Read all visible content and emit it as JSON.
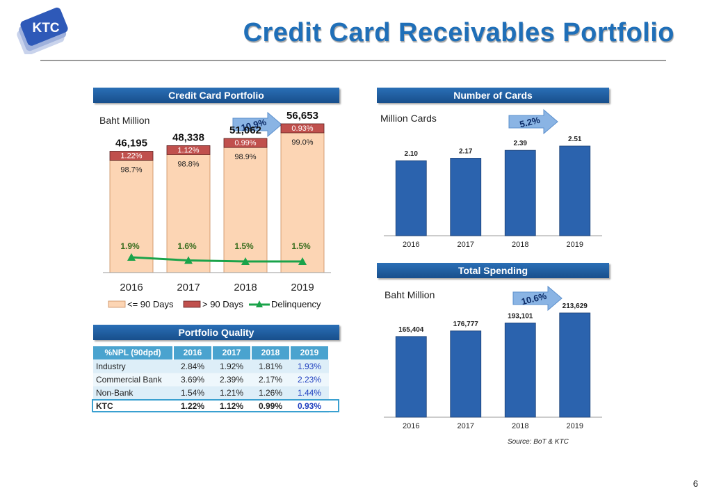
{
  "logo": {
    "text": "KTC"
  },
  "title": "Credit Card Receivables Portfolio",
  "page_number": "6",
  "source": "Source: BoT & KTC",
  "panels": {
    "portfolio": {
      "banner": "Credit Card Portfolio",
      "unit": "Baht Million",
      "growth": "10.9%"
    },
    "cards": {
      "banner": "Number of Cards",
      "unit": "Million Cards",
      "growth": "5.2%"
    },
    "spending": {
      "banner": "Total Spending",
      "unit": "Baht Million",
      "growth": "10.6%"
    },
    "quality": {
      "banner": "Portfolio Quality"
    }
  },
  "colors": {
    "accent": "#1f6fb8",
    "bar_blue": "#2b63ae",
    "bar_peach": "#fcd5b4",
    "bar_red": "#c0504d",
    "line_green": "#1aa34a"
  },
  "chart_data": [
    {
      "type": "bar",
      "stacked": true,
      "categories": [
        "2016",
        "2017",
        "2018",
        "2019"
      ],
      "totals": [
        "46,195",
        "48,338",
        "51,062",
        "56,653"
      ],
      "totals_values": [
        46195,
        48338,
        51062,
        56653
      ],
      "series": [
        {
          "name": "<= 90 Days",
          "labels": [
            "98.7%",
            "98.8%",
            "98.9%",
            "99.0%"
          ]
        },
        {
          "name": "> 90 Days",
          "labels": [
            "1.22%",
            "1.12%",
            "0.99%",
            "0.93%"
          ]
        },
        {
          "name": "Delinquency",
          "type": "line",
          "values": [
            1.9,
            1.6,
            1.5,
            1.5
          ],
          "labels": [
            "1.9%",
            "1.6%",
            "1.5%",
            "1.5%"
          ]
        }
      ],
      "legend": "bottom"
    },
    {
      "type": "bar",
      "categories": [
        "2016",
        "2017",
        "2018",
        "2019"
      ],
      "values": [
        2.1,
        2.17,
        2.39,
        2.51
      ],
      "labels": [
        "2.10",
        "2.17",
        "2.39",
        "2.51"
      ]
    },
    {
      "type": "bar",
      "categories": [
        "2016",
        "2017",
        "2018",
        "2019"
      ],
      "values": [
        165404,
        176777,
        193101,
        213629
      ],
      "labels": [
        "165,404",
        "176,777",
        "193,101",
        "213,629"
      ]
    },
    {
      "type": "table",
      "headers": [
        "%NPL (90dpd)",
        "2016",
        "2017",
        "2018",
        "2019"
      ],
      "rows": [
        [
          "Industry",
          "2.84%",
          "1.92%",
          "1.81%",
          "1.93%"
        ],
        [
          "Commercial Bank",
          "3.69%",
          "2.39%",
          "2.17%",
          "2.23%"
        ],
        [
          "Non-Bank",
          "1.54%",
          "1.21%",
          "1.26%",
          "1.44%"
        ],
        [
          "KTC",
          "1.22%",
          "1.12%",
          "0.99%",
          "0.93%"
        ]
      ]
    }
  ]
}
